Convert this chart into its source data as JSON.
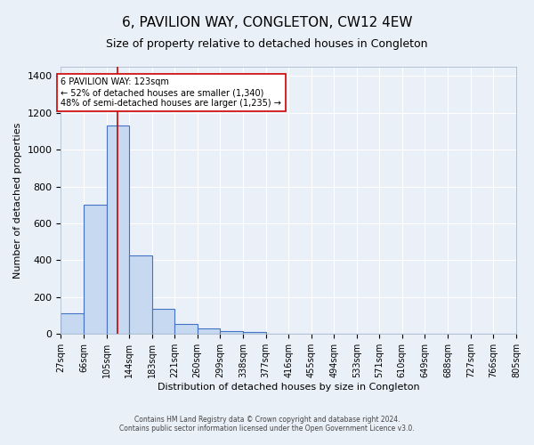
{
  "title": "6, PAVILION WAY, CONGLETON, CW12 4EW",
  "subtitle": "Size of property relative to detached houses in Congleton",
  "xlabel": "Distribution of detached houses by size in Congleton",
  "ylabel": "Number of detached properties",
  "footnote1": "Contains HM Land Registry data © Crown copyright and database right 2024.",
  "footnote2": "Contains public sector information licensed under the Open Government Licence v3.0.",
  "bar_edges": [
    27,
    66,
    105,
    144,
    183,
    221,
    260,
    299,
    338,
    377,
    416,
    455,
    494,
    533,
    571,
    610,
    649,
    688,
    727,
    766,
    805
  ],
  "bar_heights": [
    110,
    700,
    1130,
    425,
    135,
    53,
    32,
    15,
    13,
    0,
    0,
    0,
    0,
    0,
    0,
    0,
    0,
    0,
    0,
    0
  ],
  "bar_color": "#c6d9f0",
  "bar_edge_color": "#4472c4",
  "bar_linewidth": 0.8,
  "property_size": 123,
  "red_line_color": "#cc0000",
  "annotation_text": "6 PAVILION WAY: 123sqm\n← 52% of detached houses are smaller (1,340)\n48% of semi-detached houses are larger (1,235) →",
  "annotation_box_color": "white",
  "annotation_box_edge_color": "#cc0000",
  "ylim": [
    0,
    1450
  ],
  "background_color": "#eaf0f8",
  "plot_background_color": "#eaf0f8",
  "grid_color": "white",
  "title_fontsize": 11,
  "subtitle_fontsize": 9,
  "ylabel_fontsize": 8,
  "xlabel_fontsize": 8,
  "tick_fontsize": 7,
  "annot_fontsize": 7,
  "tick_labels": [
    "27sqm",
    "66sqm",
    "105sqm",
    "144sqm",
    "183sqm",
    "221sqm",
    "260sqm",
    "299sqm",
    "338sqm",
    "377sqm",
    "416sqm",
    "455sqm",
    "494sqm",
    "533sqm",
    "571sqm",
    "610sqm",
    "649sqm",
    "688sqm",
    "727sqm",
    "766sqm",
    "805sqm"
  ]
}
